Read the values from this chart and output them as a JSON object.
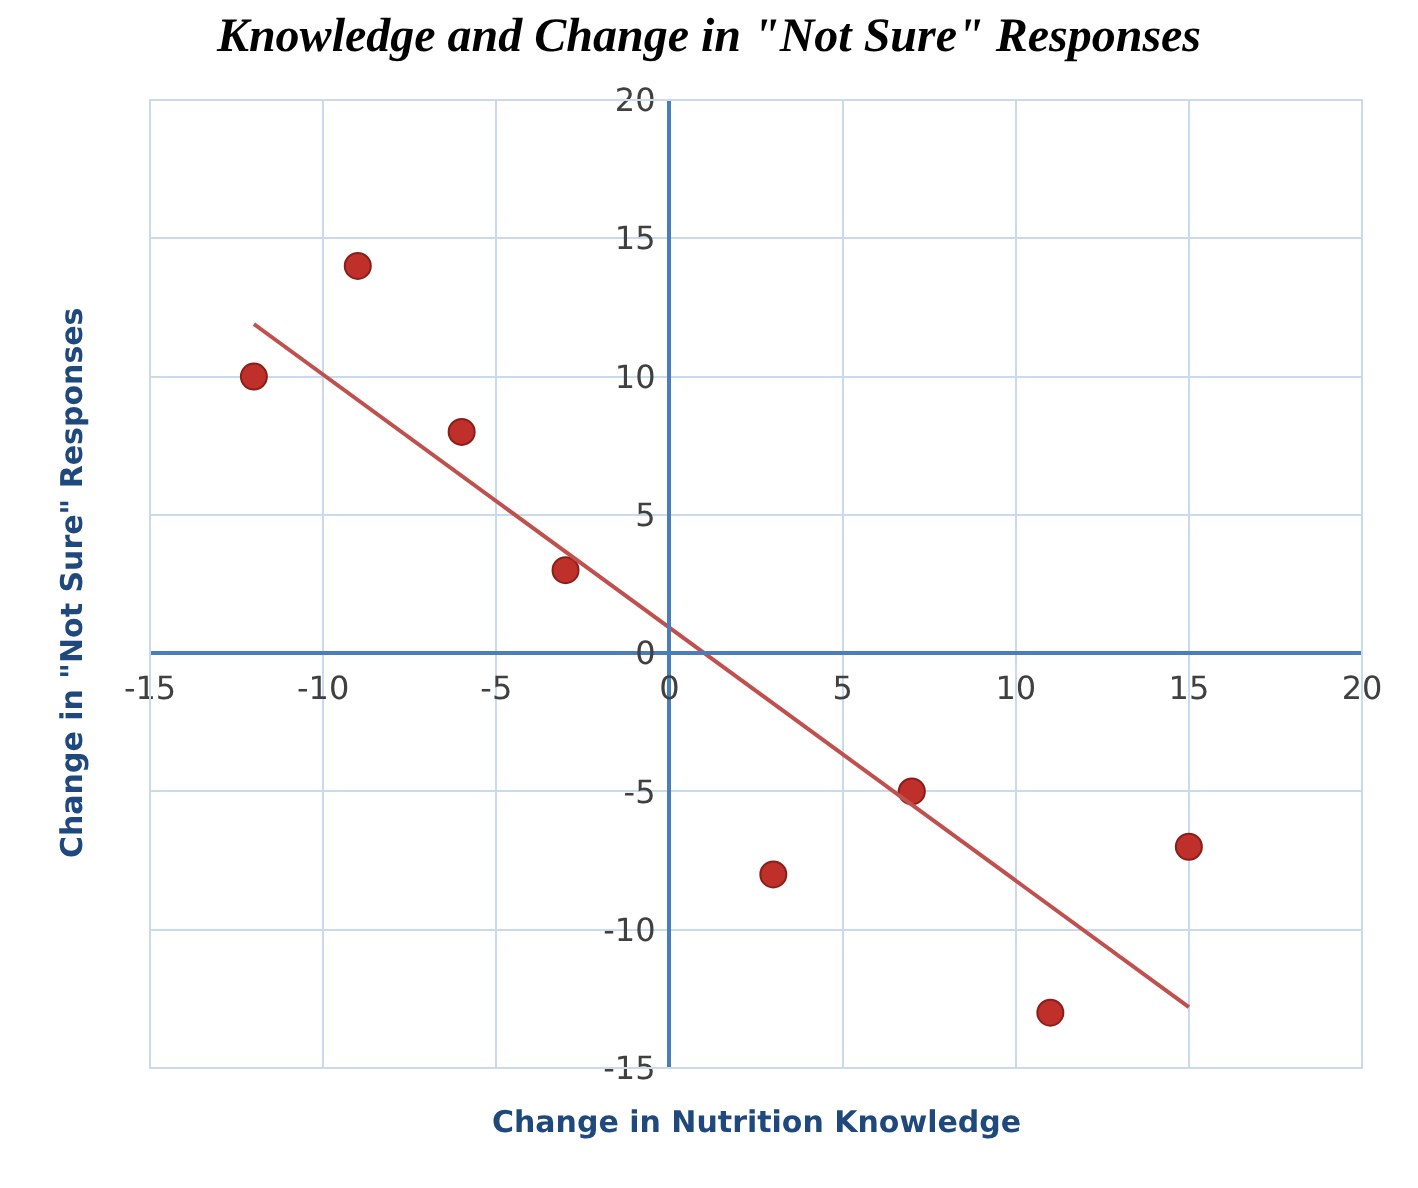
{
  "chart_data": {
    "type": "scatter",
    "title": "Knowledge and Change in \"Not Sure\" Responses",
    "xlabel": "Change in Nutrition Knowledge",
    "ylabel": "Change in \"Not Sure\" Responses",
    "x": [
      -12,
      -9,
      -6,
      -3,
      3,
      7,
      11,
      15
    ],
    "series": [
      {
        "type": "scatter",
        "color": "#c0302a",
        "values": [
          10,
          14,
          8,
          3,
          -8,
          -5,
          -13,
          -7
        ]
      },
      {
        "type": "line",
        "marker": "none",
        "color": "#c0504d",
        "x": [
          -12,
          15
        ],
        "values": [
          11.9,
          -12.8
        ]
      }
    ],
    "xlim": [
      -15,
      20
    ],
    "xticks": [
      -15,
      -10,
      -5,
      0,
      5,
      10,
      15,
      20
    ],
    "ylim": [
      -15,
      20
    ],
    "yticks": [
      -15,
      -10,
      -5,
      0,
      5,
      10,
      15,
      20
    ],
    "grid": true,
    "marker": "circle"
  }
}
